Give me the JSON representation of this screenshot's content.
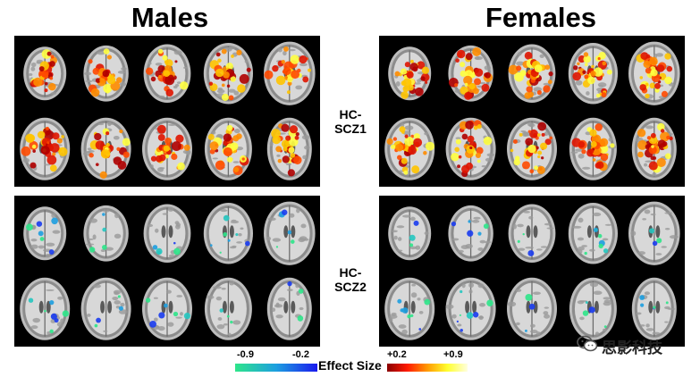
{
  "titles": {
    "males": "Males",
    "females": "Females"
  },
  "row_labels": {
    "top": "HC-SCZ1",
    "bottom": "HC-SCZ2"
  },
  "legend": {
    "caption": "Effect Size",
    "neg_min": "-0.9",
    "neg_max": "-0.2",
    "pos_min": "+0.2",
    "pos_max": "+0.9",
    "neg_colors": [
      "#2ee58a",
      "#1d9fe0",
      "#1a1aee"
    ],
    "pos_colors": [
      "#8a0000",
      "#ff1a00",
      "#ff9a00",
      "#ffff30",
      "#ffffe0"
    ]
  },
  "watermark": {
    "text": "思影科技",
    "icon": "wechat-icon"
  }
}
